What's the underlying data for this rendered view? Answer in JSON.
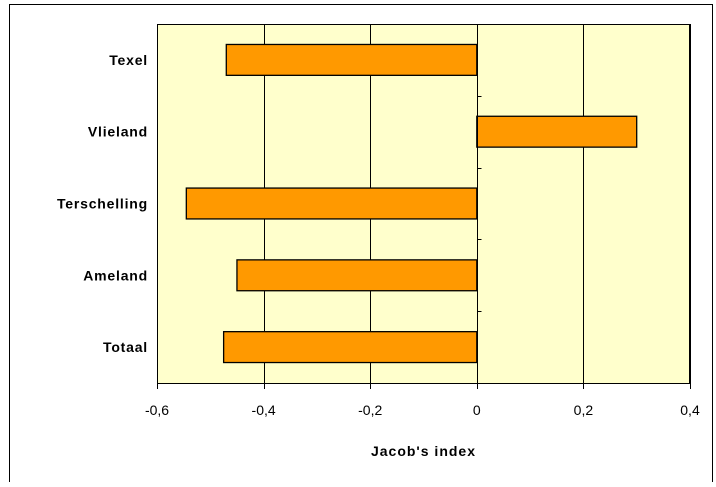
{
  "chart_data": {
    "type": "bar",
    "orientation": "horizontal",
    "categories": [
      "Texel",
      "Vlieland",
      "Terschelling",
      "Ameland",
      "Totaal"
    ],
    "values": [
      -0.47,
      0.3,
      -0.545,
      -0.45,
      -0.475
    ],
    "xlabel": "Jacob's index",
    "ylabel": "",
    "title": "",
    "xlim": [
      -0.6,
      0.4
    ],
    "xticks": [
      -0.6,
      -0.4,
      -0.2,
      0,
      0.2,
      0.4
    ],
    "xtick_labels": [
      "-0,6",
      "-0,4",
      "-0,2",
      "0",
      "0,2",
      "0,4"
    ],
    "grid": "vertical gridlines",
    "legend": "none",
    "colors": {
      "bar_fill": "#FF9900",
      "bar_stroke": "#000000",
      "plot_background": "#FFFFCC",
      "frame": "#000000"
    }
  }
}
